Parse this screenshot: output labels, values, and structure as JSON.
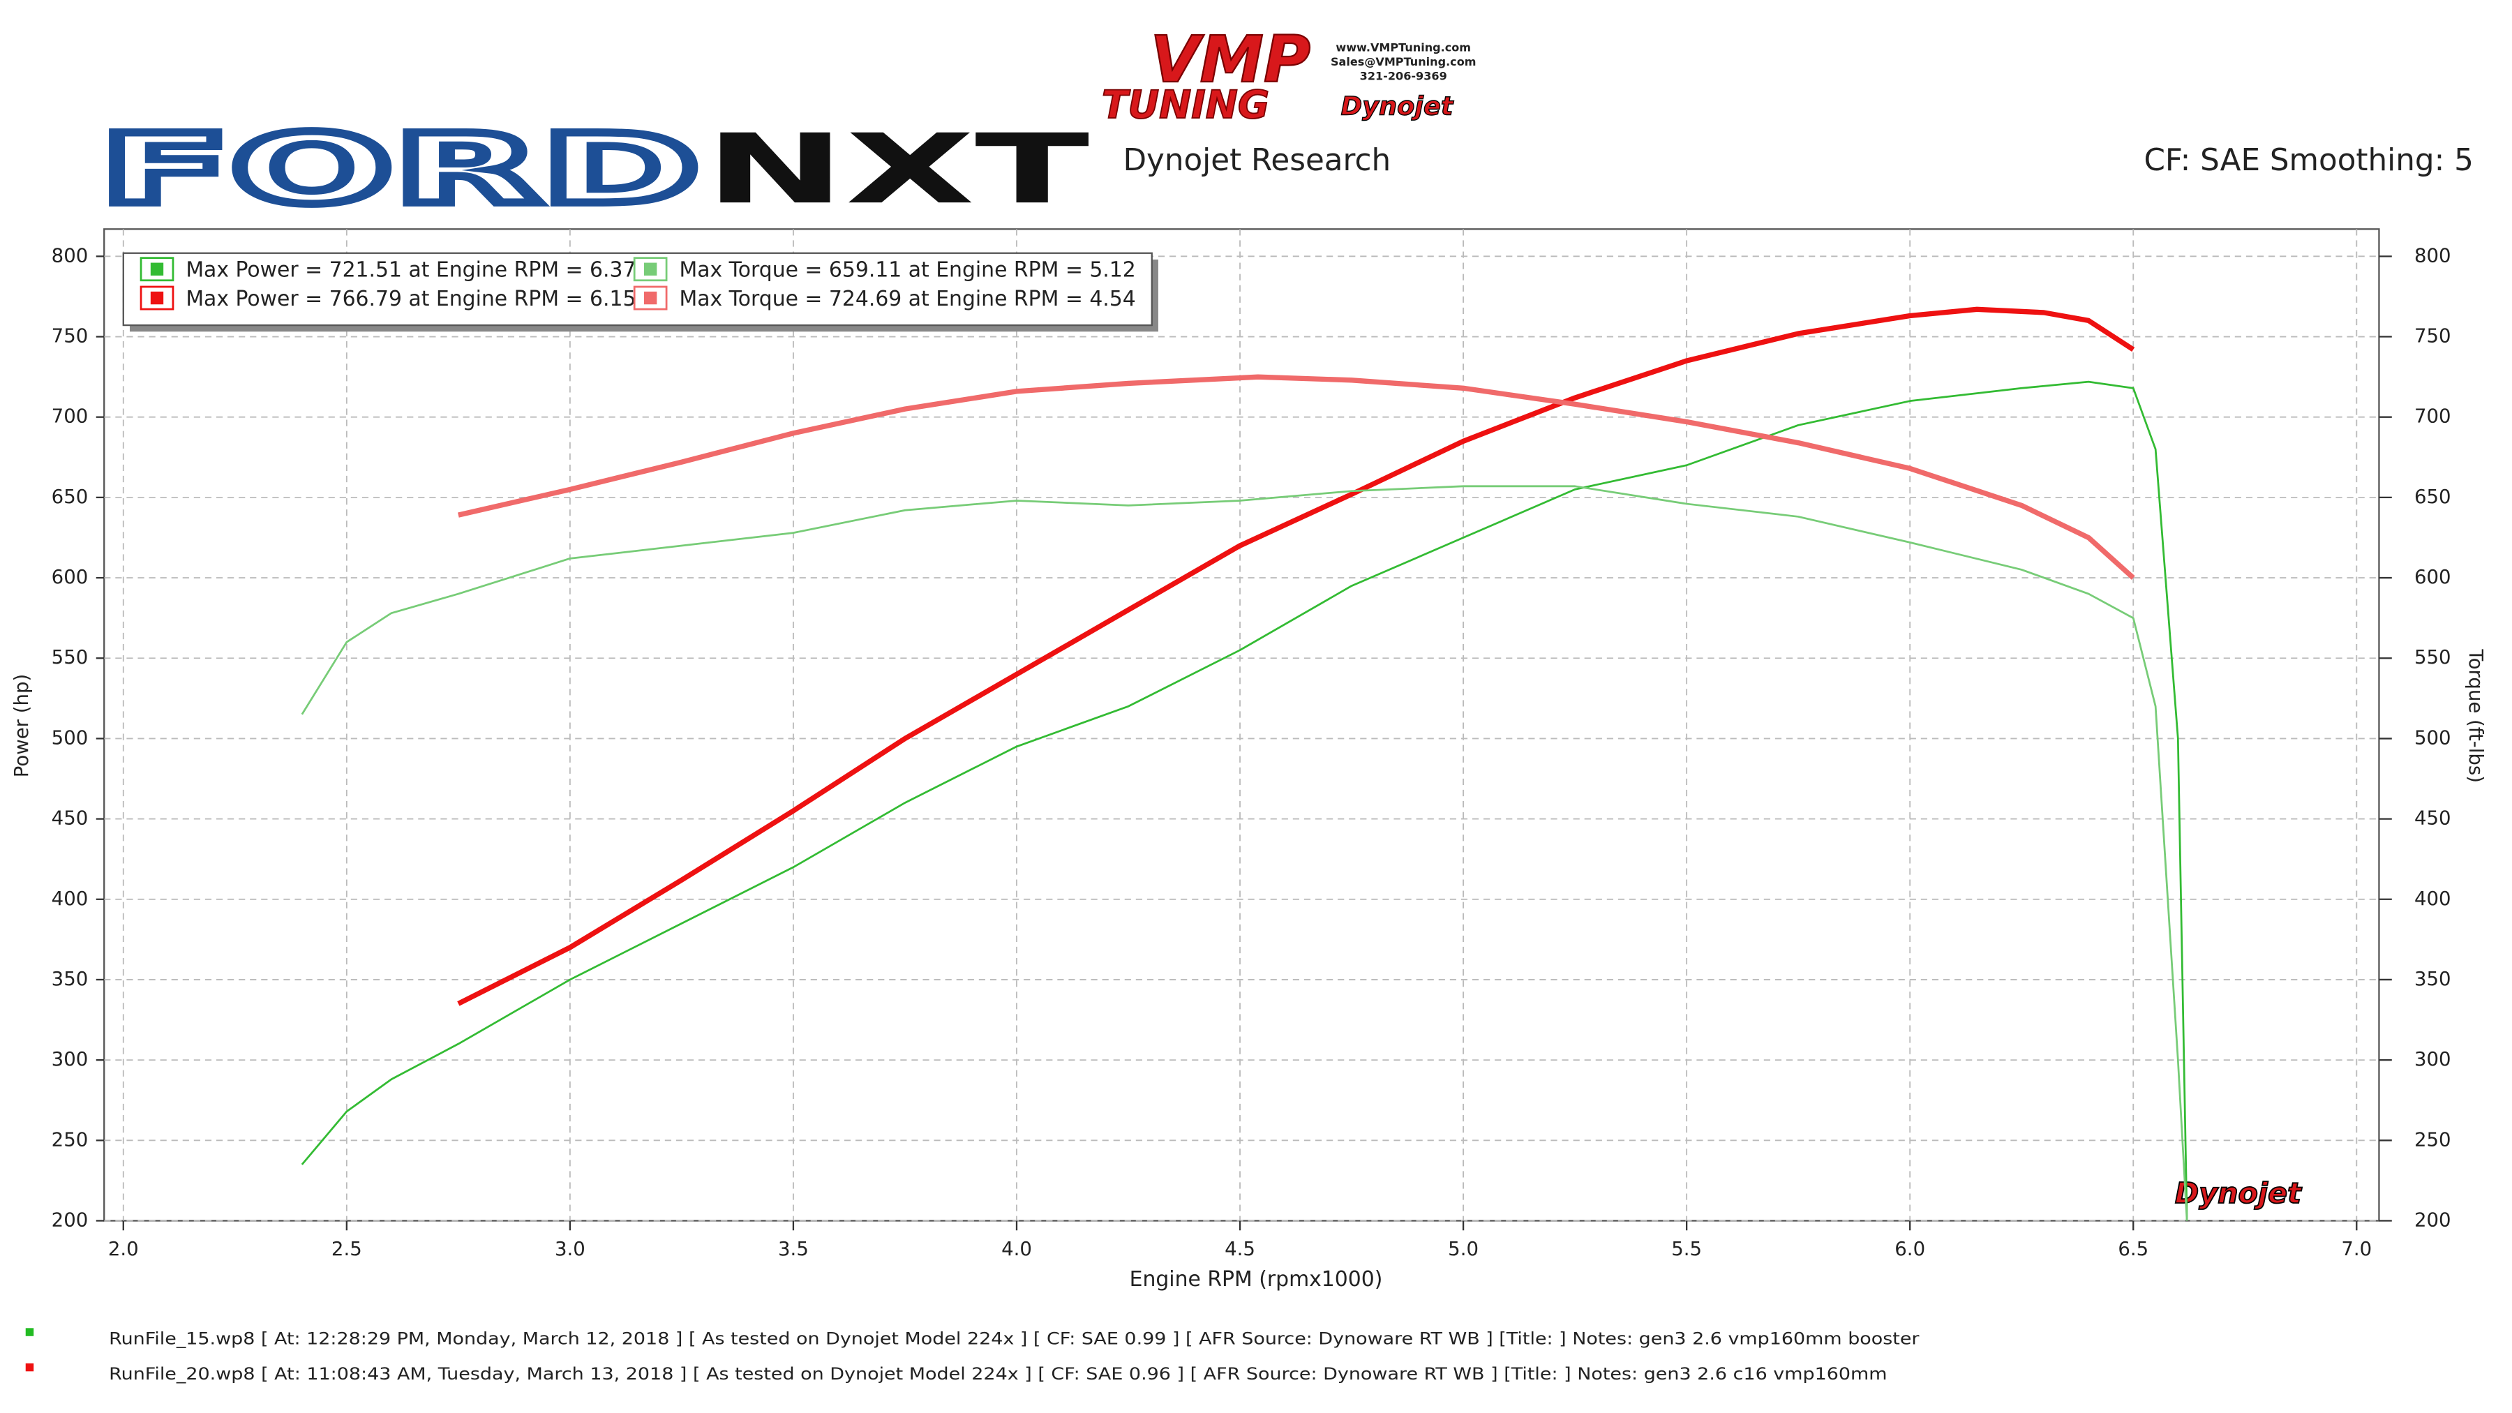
{
  "chart_data": {
    "type": "line",
    "logos": {
      "vmp": "VMP",
      "tuning": "TUNING",
      "web": "www.VMPTuning.com",
      "email": "Sales@VMPTuning.com",
      "phone": "321-206-9369",
      "dynojet": "Dynojet",
      "ford": "FORD",
      "nxt": "NXT"
    },
    "subtitle": "Dynojet Research",
    "settings_label": "CF: SAE Smoothing: 5",
    "x_label": "Engine RPM (rpmx1000)",
    "y_label": "Power (hp)",
    "y2_label": "Torque (ft-lbs)",
    "xlim": [
      2.0,
      7.0
    ],
    "xticks": [
      {
        "value": 2.0,
        "label": "2.0"
      },
      2.5,
      {
        "value": 3.0,
        "label": "3.0"
      },
      3.5,
      {
        "value": 4.0,
        "label": "4.0"
      },
      4.5,
      {
        "value": 5.0,
        "label": "5.0"
      },
      5.5,
      {
        "value": 6.0,
        "label": "6.0"
      },
      6.5,
      {
        "value": 7.0,
        "label": "7.0"
      }
    ],
    "ylim": [
      200,
      800
    ],
    "yticks": [
      200,
      250,
      300,
      350,
      400,
      450,
      500,
      550,
      600,
      650,
      700,
      750,
      800
    ],
    "y2lim": [
      200,
      800
    ],
    "y2ticks": [
      200,
      250,
      300,
      350,
      400,
      450,
      500,
      550,
      600,
      650,
      700,
      750,
      800
    ],
    "grid": true,
    "legend": "top-left",
    "series": [
      {
        "name": "Max Power = 721.51 at Engine RPM = 6.37",
        "color": "#33bb33",
        "width": 1.2,
        "x": [
          2.4,
          2.5,
          2.6,
          2.75,
          3.0,
          3.25,
          3.5,
          3.75,
          4.0,
          4.25,
          4.5,
          4.75,
          5.0,
          5.25,
          5.5,
          5.75,
          6.0,
          6.25,
          6.4,
          6.5,
          6.55,
          6.6,
          6.62
        ],
        "values": [
          235,
          268,
          288,
          310,
          350,
          385,
          420,
          460,
          495,
          520,
          555,
          595,
          625,
          655,
          670,
          695,
          710,
          718,
          722,
          718,
          680,
          500,
          200
        ]
      },
      {
        "name": "Max Power = 766.79 at Engine RPM = 6.15",
        "color": "#ee1111",
        "width": 3.2,
        "x": [
          2.75,
          3.0,
          3.25,
          3.5,
          3.75,
          4.0,
          4.25,
          4.5,
          4.75,
          5.0,
          5.25,
          5.5,
          5.75,
          6.0,
          6.15,
          6.3,
          6.4,
          6.5
        ],
        "values": [
          335,
          370,
          412,
          455,
          500,
          540,
          580,
          620,
          652,
          685,
          712,
          735,
          752,
          763,
          767,
          765,
          760,
          742
        ]
      },
      {
        "name": "Max Torque = 659.11 at Engine RPM = 5.12",
        "color": "#77cc77",
        "width": 1.2,
        "axis": "y2",
        "x": [
          2.4,
          2.5,
          2.6,
          2.75,
          3.0,
          3.25,
          3.5,
          3.75,
          4.0,
          4.25,
          4.5,
          4.75,
          5.0,
          5.25,
          5.5,
          5.75,
          6.0,
          6.25,
          6.4,
          6.5,
          6.55,
          6.6,
          6.62
        ],
        "values": [
          515,
          560,
          578,
          590,
          612,
          620,
          628,
          642,
          648,
          645,
          648,
          654,
          657,
          657,
          646,
          638,
          622,
          605,
          590,
          575,
          520,
          300,
          200
        ]
      },
      {
        "name": "Max Torque = 724.69 at Engine RPM = 4.54",
        "color": "#f06a6a",
        "width": 3.2,
        "axis": "y2",
        "x": [
          2.75,
          3.0,
          3.25,
          3.5,
          3.75,
          4.0,
          4.25,
          4.54,
          4.75,
          5.0,
          5.25,
          5.5,
          5.75,
          6.0,
          6.25,
          6.4,
          6.5
        ],
        "values": [
          639,
          655,
          672,
          690,
          705,
          716,
          721,
          725,
          723,
          718,
          708,
          697,
          684,
          668,
          645,
          625,
          600
        ]
      }
    ],
    "footnotes": [
      {
        "color": "#22bb22",
        "text": "RunFile_15.wp8 [ At: 12:28:29 PM, Monday, March 12, 2018 ] [ As tested on Dynojet Model 224x ] [ CF: SAE 0.99 ] [ AFR Source: Dynoware RT WB ] [Title: ]   Notes: gen3 2.6 vmp160mm booster"
      },
      {
        "color": "#ee1111",
        "text": "RunFile_20.wp8 [ At: 11:08:43 AM, Tuesday, March 13, 2018 ] [ As tested on Dynojet Model 224x ] [ CF: SAE 0.96 ] [ AFR Source: Dynoware RT WB ] [Title: ]   Notes: gen3 2.6 c16 vmp160mm"
      }
    ]
  }
}
